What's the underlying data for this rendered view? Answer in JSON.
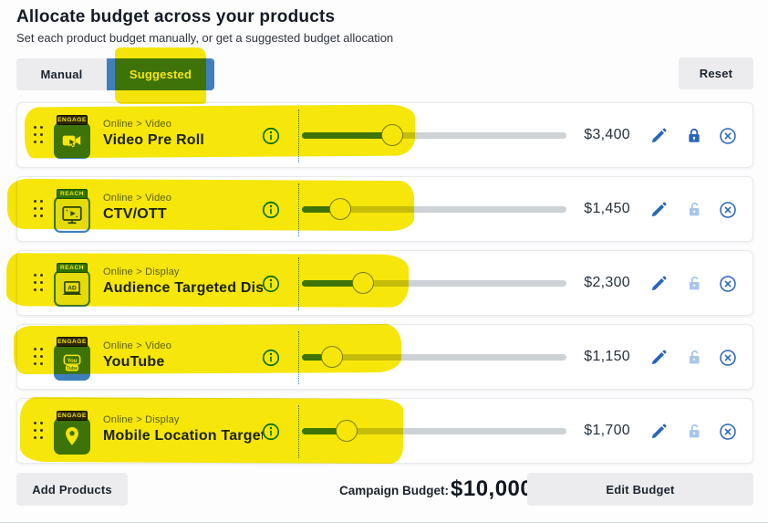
{
  "header": {
    "title": "Allocate budget across your products",
    "subtitle": "Set each product budget manually, or get a suggested budget allocation"
  },
  "toolbar": {
    "tabs": [
      {
        "label": "Manual",
        "active": false
      },
      {
        "label": "Suggested",
        "active": true
      }
    ],
    "reset_label": "Reset"
  },
  "products": [
    {
      "tier": "ENGAGE",
      "icon": "video-preroll-icon",
      "category": "Online > Video",
      "name": "Video Pre Roll",
      "amount": "$3,400",
      "value": 3400,
      "pct": 34,
      "locked": true
    },
    {
      "tier": "REACH",
      "icon": "ctv-tv-icon",
      "category": "Online > Video",
      "name": "CTV/OTT",
      "amount": "$1,450",
      "value": 1450,
      "pct": 14.5,
      "locked": false
    },
    {
      "tier": "REACH",
      "icon": "display-ad-icon",
      "category": "Online > Display",
      "name": "Audience Targeted Dis…",
      "amount": "$2,300",
      "value": 2300,
      "pct": 23,
      "locked": false
    },
    {
      "tier": "ENGAGE",
      "icon": "youtube-icon",
      "category": "Online > Video",
      "name": "YouTube",
      "amount": "$1,150",
      "value": 1150,
      "pct": 11.5,
      "locked": false
    },
    {
      "tier": "ENGAGE",
      "icon": "location-pin-icon",
      "category": "Online > Display",
      "name": "Mobile Location Target…",
      "amount": "$1,700",
      "value": 1700,
      "pct": 17,
      "locked": false
    }
  ],
  "slider": {
    "max_value": 10000
  },
  "footer": {
    "add_products_label": "Add Products",
    "campaign_budget_label": "Campaign Budget:",
    "campaign_budget_value": "$10,000",
    "edit_budget_label": "Edit Budget"
  },
  "colors": {
    "accent_blue": "#3f7fbd",
    "icon_blue": "#2a66b8",
    "unlocked_blue": "#a9c6e8",
    "info_green": "#00796b",
    "highlight_yellow": "#f6e60a",
    "track_gray": "#cdd2d6"
  },
  "annotations": {
    "highlighter_color": "#f6e60a",
    "highlighted_items": [
      "Suggested tab",
      "row 1",
      "row 2",
      "row 3",
      "row 4",
      "row 5"
    ]
  }
}
